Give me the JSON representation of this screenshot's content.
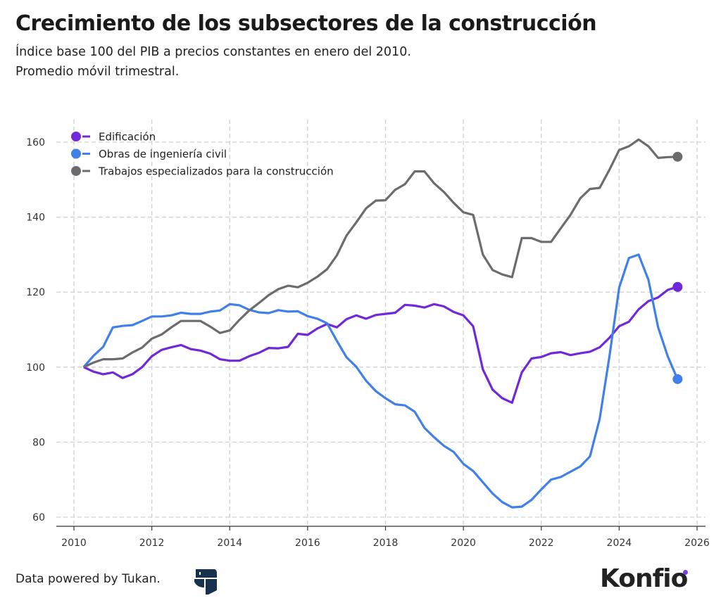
{
  "header": {
    "title": "Crecimiento de los subsectores de la construcción",
    "subtitle_line1": "Índice base 100 del PIB a precios constantes en enero del 2010.",
    "subtitle_line2": "Promedio móvil trimestral."
  },
  "footer": {
    "credit": "Data powered by Tukan.",
    "tukan_logo": "tukan-logo",
    "brand": "Konfio"
  },
  "chart_data": {
    "type": "line",
    "title": "Crecimiento de los subsectores de la construcción",
    "xlabel": "",
    "ylabel": "",
    "xlim": [
      2009.5,
      2026.3
    ],
    "ylim": [
      58,
      163
    ],
    "x_ticks": [
      2010,
      2012,
      2014,
      2016,
      2018,
      2020,
      2022,
      2024,
      2026
    ],
    "y_ticks": [
      60,
      80,
      100,
      120,
      140,
      160
    ],
    "grid": true,
    "legend_position": "top-left",
    "x_start": 2010.25,
    "x_step": 0.25,
    "series": [
      {
        "name": "Edificación",
        "color": "#7028d8",
        "values": [
          100,
          98.8,
          98.1,
          98.6,
          97.1,
          98.1,
          100,
          102.9,
          104.6,
          105.3,
          105.9,
          104.8,
          104.4,
          103.6,
          102.1,
          101.7,
          101.7,
          102.9,
          103.8,
          105.1,
          105,
          105.4,
          108.9,
          108.6,
          110.3,
          111.5,
          110.6,
          112.8,
          113.8,
          112.9,
          113.9,
          114.2,
          114.5,
          116.6,
          116.4,
          115.9,
          116.8,
          116.2,
          114.7,
          113.8,
          110.9,
          99.4,
          94,
          91.7,
          90.5,
          98.6,
          102.3,
          102.7,
          103.7,
          104,
          103.2,
          103.7,
          104.1,
          105.3,
          107.8,
          110.9,
          112.1,
          115.4,
          117.6,
          118.6,
          120.6,
          121.4
        ]
      },
      {
        "name": "Obras de ingeniería civil",
        "color": "#4080e8",
        "values": [
          100,
          103,
          105.4,
          110.6,
          111,
          111.2,
          112.3,
          113.5,
          113.5,
          113.8,
          114.5,
          114.2,
          114.2,
          114.8,
          115.1,
          116.8,
          116.5,
          115.3,
          114.6,
          114.4,
          115.2,
          114.8,
          114.9,
          113.6,
          112.9,
          111.7,
          107,
          102.6,
          100.1,
          96.4,
          93.6,
          91.7,
          90.1,
          89.8,
          88.1,
          83.8,
          81.3,
          79,
          77.4,
          74.2,
          72.3,
          69.3,
          66.3,
          64,
          62.6,
          62.8,
          64.6,
          67.4,
          70,
          70.7,
          72.1,
          73.5,
          76.2,
          86.2,
          102.8,
          121.2,
          129.1,
          130,
          123.3,
          110.6,
          102.8,
          96.8
        ]
      },
      {
        "name": "Trabajos especializados para la construcción",
        "color": "#6b6b70",
        "values": [
          100,
          101.2,
          102.1,
          102.1,
          102.3,
          103.9,
          105.2,
          107.6,
          108.7,
          110.6,
          112.3,
          112.3,
          112.3,
          110.8,
          109.1,
          109.8,
          112.6,
          115.1,
          117.1,
          119.2,
          120.8,
          121.7,
          121.3,
          122.5,
          124.1,
          126.1,
          129.8,
          135.1,
          138.6,
          142.3,
          144.4,
          144.5,
          147.3,
          148.8,
          152.2,
          152.2,
          149,
          146.7,
          143.8,
          141.3,
          140.6,
          130,
          125.9,
          124.7,
          124,
          134.4,
          134.4,
          133.4,
          133.4,
          137,
          140.6,
          145,
          147.5,
          147.8,
          152.6,
          157.9,
          158.9,
          160.7,
          158.9,
          155.8,
          156,
          156.1
        ]
      }
    ]
  }
}
